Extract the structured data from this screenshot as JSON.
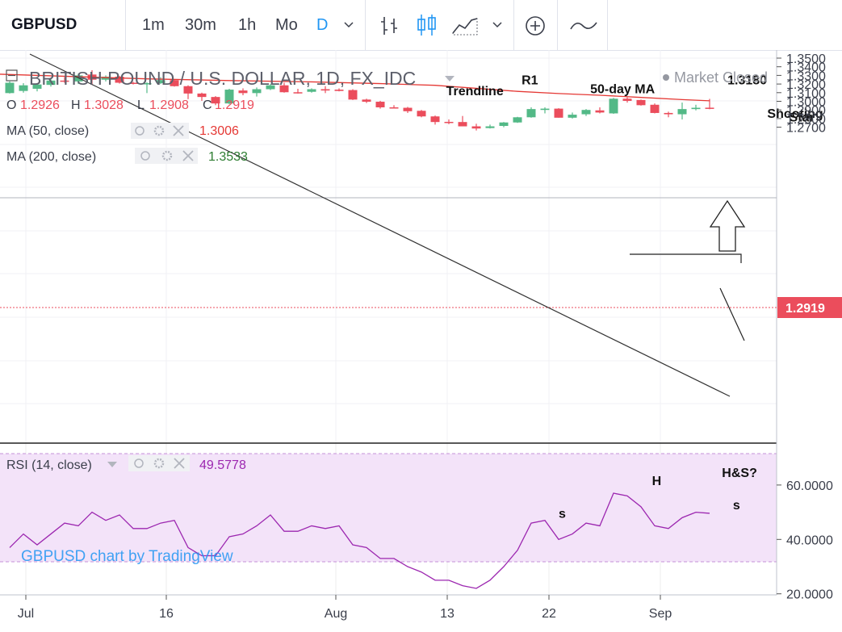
{
  "toolbar": {
    "symbol": "GBPUSD",
    "intervals": [
      "1m",
      "30m",
      "1h",
      "Mo",
      "D"
    ],
    "active_interval": "D",
    "icons": [
      "chevron-down-icon",
      "bar-style-icon",
      "candles-icon",
      "area-icon",
      "chevron-down-icon",
      "plus-circle-icon",
      "indicator-wave-icon"
    ]
  },
  "legend": {
    "title": "BRITISH POUND / U.S. DOLLAR, 1D, FX_IDC",
    "market_status": "Market Closed",
    "ohlc": {
      "o_label": "O",
      "o": "1.2926",
      "h_label": "H",
      "h": "1.3028",
      "l_label": "L",
      "l": "1.2908",
      "c_label": "C",
      "c": "1.2919"
    },
    "ma50": {
      "label": "MA (50, close)",
      "value": "1.3006"
    },
    "ma200": {
      "label": "MA (200, close)",
      "value": "1.3533"
    }
  },
  "colors": {
    "up": "#53b987",
    "down": "#eb4d5c",
    "ma50": "#e53935",
    "rsi": "#9c27b0",
    "rsi_band": "#f3e3f9",
    "text": "#3a3e4a",
    "ma200_text": "#2e7d32"
  },
  "chart_data": [
    {
      "type": "candlestick",
      "title": "BRITISH POUND / U.S. DOLLAR, 1D, FX_IDC",
      "ylim": [
        1.262,
        1.352
      ],
      "yticks": [
        "1.3500",
        "1.3400",
        "1.3300",
        "1.3200",
        "1.3100",
        "1.3000",
        "1.2900",
        "1.2800",
        "1.2700"
      ],
      "xticks": [
        "Jul",
        "16",
        "Aug",
        "13",
        "22",
        "Sep"
      ],
      "last_price": "1.2919",
      "candles": [
        {
          "o": 1.3095,
          "h": 1.323,
          "l": 1.309,
          "c": 1.3215
        },
        {
          "o": 1.312,
          "h": 1.321,
          "l": 1.31,
          "c": 1.3185
        },
        {
          "o": 1.3145,
          "h": 1.3205,
          "l": 1.3115,
          "c": 1.3195
        },
        {
          "o": 1.319,
          "h": 1.326,
          "l": 1.317,
          "c": 1.324
        },
        {
          "o": 1.324,
          "h": 1.328,
          "l": 1.3215,
          "c": 1.323
        },
        {
          "o": 1.323,
          "h": 1.332,
          "l": 1.32,
          "c": 1.33
        },
        {
          "o": 1.331,
          "h": 1.336,
          "l": 1.319,
          "c": 1.325
        },
        {
          "o": 1.325,
          "h": 1.33,
          "l": 1.323,
          "c": 1.3285
        },
        {
          "o": 1.3285,
          "h": 1.3295,
          "l": 1.3205,
          "c": 1.3215
        },
        {
          "o": 1.3215,
          "h": 1.3225,
          "l": 1.3195,
          "c": 1.3205
        },
        {
          "o": 1.3205,
          "h": 1.322,
          "l": 1.3095,
          "c": 1.321
        },
        {
          "o": 1.321,
          "h": 1.328,
          "l": 1.32,
          "c": 1.3245
        },
        {
          "o": 1.3245,
          "h": 1.325,
          "l": 1.317,
          "c": 1.3175
        },
        {
          "o": 1.3175,
          "h": 1.3185,
          "l": 1.3025,
          "c": 1.309
        },
        {
          "o": 1.309,
          "h": 1.31,
          "l": 1.3005,
          "c": 1.305
        },
        {
          "o": 1.305,
          "h": 1.306,
          "l": 1.2955,
          "c": 1.2975
        },
        {
          "o": 1.2975,
          "h": 1.3145,
          "l": 1.2965,
          "c": 1.3135
        },
        {
          "o": 1.3125,
          "h": 1.315,
          "l": 1.307,
          "c": 1.3095
        },
        {
          "o": 1.3095,
          "h": 1.316,
          "l": 1.3055,
          "c": 1.314
        },
        {
          "o": 1.314,
          "h": 1.32,
          "l": 1.313,
          "c": 1.3185
        },
        {
          "o": 1.3185,
          "h": 1.3215,
          "l": 1.31,
          "c": 1.3105
        },
        {
          "o": 1.3105,
          "h": 1.3145,
          "l": 1.309,
          "c": 1.3095
        },
        {
          "o": 1.311,
          "h": 1.315,
          "l": 1.31,
          "c": 1.314
        },
        {
          "o": 1.314,
          "h": 1.3175,
          "l": 1.3095,
          "c": 1.3125
        },
        {
          "o": 1.3135,
          "h": 1.315,
          "l": 1.3115,
          "c": 1.312
        },
        {
          "o": 1.313,
          "h": 1.314,
          "l": 1.3015,
          "c": 1.302
        },
        {
          "o": 1.302,
          "h": 1.303,
          "l": 1.298,
          "c": 1.2995
        },
        {
          "o": 1.2995,
          "h": 1.3005,
          "l": 1.2915,
          "c": 1.293
        },
        {
          "o": 1.293,
          "h": 1.2955,
          "l": 1.292,
          "c": 1.2925
        },
        {
          "o": 1.2925,
          "h": 1.2935,
          "l": 1.2865,
          "c": 1.2885
        },
        {
          "o": 1.289,
          "h": 1.29,
          "l": 1.2815,
          "c": 1.2825
        },
        {
          "o": 1.2825,
          "h": 1.2835,
          "l": 1.273,
          "c": 1.276
        },
        {
          "o": 1.2762,
          "h": 1.279,
          "l": 1.2735,
          "c": 1.2758
        },
        {
          "o": 1.276,
          "h": 1.283,
          "l": 1.271,
          "c": 1.271
        },
        {
          "o": 1.271,
          "h": 1.274,
          "l": 1.2662,
          "c": 1.2685
        },
        {
          "o": 1.269,
          "h": 1.273,
          "l": 1.2685,
          "c": 1.271
        },
        {
          "o": 1.2715,
          "h": 1.276,
          "l": 1.27,
          "c": 1.2755
        },
        {
          "o": 1.2755,
          "h": 1.282,
          "l": 1.275,
          "c": 1.2815
        },
        {
          "o": 1.2815,
          "h": 1.293,
          "l": 1.281,
          "c": 1.291
        },
        {
          "o": 1.29,
          "h": 1.293,
          "l": 1.286,
          "c": 1.2915
        },
        {
          "o": 1.2915,
          "h": 1.292,
          "l": 1.281,
          "c": 1.281
        },
        {
          "o": 1.281,
          "h": 1.287,
          "l": 1.28,
          "c": 1.2845
        },
        {
          "o": 1.285,
          "h": 1.291,
          "l": 1.283,
          "c": 1.29
        },
        {
          "o": 1.2895,
          "h": 1.293,
          "l": 1.286,
          "c": 1.287
        },
        {
          "o": 1.286,
          "h": 1.304,
          "l": 1.2855,
          "c": 1.303
        },
        {
          "o": 1.303,
          "h": 1.3045,
          "l": 1.2985,
          "c": 1.3005
        },
        {
          "o": 1.3015,
          "h": 1.302,
          "l": 1.295,
          "c": 1.2955
        },
        {
          "o": 1.296,
          "h": 1.2975,
          "l": 1.286,
          "c": 1.2865
        },
        {
          "o": 1.2865,
          "h": 1.288,
          "l": 1.2815,
          "c": 1.285
        },
        {
          "o": 1.285,
          "h": 1.2985,
          "l": 1.279,
          "c": 1.291
        },
        {
          "o": 1.291,
          "h": 1.296,
          "l": 1.2895,
          "c": 1.2925
        },
        {
          "o": 1.2926,
          "h": 1.3028,
          "l": 1.2908,
          "c": 1.2919
        }
      ],
      "ma50_line": [
        {
          "i": -2,
          "v": 1.332
        },
        {
          "i": 0,
          "v": 1.331
        },
        {
          "i": 6,
          "v": 1.328
        },
        {
          "i": 10,
          "v": 1.326
        },
        {
          "i": 16,
          "v": 1.324
        },
        {
          "i": 22,
          "v": 1.3225
        },
        {
          "i": 27,
          "v": 1.3205
        },
        {
          "i": 31,
          "v": 1.3185
        },
        {
          "i": 34,
          "v": 1.315
        },
        {
          "i": 37,
          "v": 1.3115
        },
        {
          "i": 40,
          "v": 1.309
        },
        {
          "i": 43,
          "v": 1.307
        },
        {
          "i": 46,
          "v": 1.3045
        },
        {
          "i": 49,
          "v": 1.302
        },
        {
          "i": 51,
          "v": 1.3006
        }
      ],
      "annotations": [
        {
          "text": "R1",
          "x": 37.3,
          "y": 1.3195,
          "level": 1.3172
        },
        {
          "text": "1.3180",
          "x": 52.3,
          "y": 1.3195
        },
        {
          "text": "50-day MA",
          "x": 42.3,
          "y": 1.3092
        },
        {
          "text": "Trendline",
          "x": 31.8,
          "y": 1.307
        },
        {
          "text": "Shooting",
          "x": 55.2,
          "y": 1.281
        },
        {
          "text": "Star",
          "x": 56.8,
          "y": 1.2767
        }
      ]
    },
    {
      "type": "line",
      "name": "RSI (14, close)",
      "value": "49.5778",
      "ylim": [
        20,
        70
      ],
      "band": [
        30,
        70
      ],
      "yticks": [
        "60.0000",
        "40.0000",
        "20.0000"
      ],
      "values": [
        37,
        42,
        38,
        42,
        46,
        45,
        50,
        47,
        49,
        44,
        44,
        46,
        47,
        37,
        34,
        34,
        41,
        42,
        45,
        49,
        43,
        43,
        45,
        44,
        45,
        38,
        37,
        33,
        33,
        30,
        28,
        25,
        25,
        23,
        22,
        25,
        30,
        36,
        46,
        47,
        40,
        42,
        46,
        45,
        57,
        56,
        52,
        45,
        44,
        48,
        50,
        49.6
      ],
      "annotations": [
        {
          "text": "s",
          "x": 40.0,
          "y": 48
        },
        {
          "text": "H",
          "x": 46.8,
          "y": 60
        },
        {
          "text": "H&S?",
          "x": 51.9,
          "y": 63
        },
        {
          "text": "s",
          "x": 52.7,
          "y": 51
        }
      ]
    }
  ],
  "watermark": "GBPUSD chart by TradingView"
}
